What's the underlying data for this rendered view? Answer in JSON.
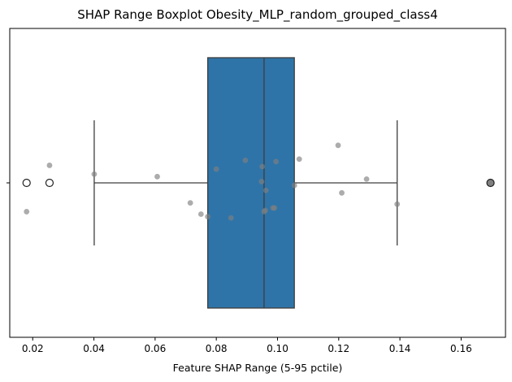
{
  "chart_data": {
    "type": "boxplot",
    "title": "SHAP Range Boxplot Obesity_MLP_random_grouped_class4",
    "xlabel": "Feature SHAP Range (5-95 pctile)",
    "ylabel": "",
    "xlim": [
      0.0125,
      0.1745
    ],
    "xticks": [
      0.02,
      0.04,
      0.06,
      0.08,
      0.1,
      0.12,
      0.14,
      0.16
    ],
    "xtick_labels": [
      "0.02",
      "0.04",
      "0.06",
      "0.08",
      "0.10",
      "0.12",
      "0.14",
      "0.16"
    ],
    "grid": false,
    "box": {
      "q1": 0.0772,
      "median": 0.0956,
      "q3": 0.1055,
      "whisker_low": 0.0401,
      "whisker_high": 0.1391,
      "color": "#2e74a8",
      "edge_color": "#3d3d3d"
    },
    "outliers": [
      {
        "x": 0.018,
        "fill": "none"
      },
      {
        "x": 0.0255,
        "fill": "none"
      },
      {
        "x": 0.1696,
        "fill": "#808080"
      }
    ],
    "points_color": "#808080",
    "points": [
      {
        "x": 0.018,
        "jitter": -0.23
      },
      {
        "x": 0.0255,
        "jitter": 0.14
      },
      {
        "x": 0.0401,
        "jitter": 0.07
      },
      {
        "x": 0.0607,
        "jitter": 0.05
      },
      {
        "x": 0.0715,
        "jitter": -0.16
      },
      {
        "x": 0.075,
        "jitter": -0.25
      },
      {
        "x": 0.0772,
        "jitter": -0.27
      },
      {
        "x": 0.08,
        "jitter": 0.11
      },
      {
        "x": 0.0848,
        "jitter": -0.28
      },
      {
        "x": 0.0895,
        "jitter": 0.18
      },
      {
        "x": 0.0948,
        "jitter": 0.01
      },
      {
        "x": 0.095,
        "jitter": 0.13
      },
      {
        "x": 0.0956,
        "jitter": -0.23
      },
      {
        "x": 0.096,
        "jitter": -0.22
      },
      {
        "x": 0.0962,
        "jitter": -0.06
      },
      {
        "x": 0.0985,
        "jitter": -0.2
      },
      {
        "x": 0.099,
        "jitter": -0.2
      },
      {
        "x": 0.0995,
        "jitter": 0.17
      },
      {
        "x": 0.1055,
        "jitter": -0.02
      },
      {
        "x": 0.1071,
        "jitter": 0.19
      },
      {
        "x": 0.1198,
        "jitter": 0.3
      },
      {
        "x": 0.121,
        "jitter": -0.08
      },
      {
        "x": 0.1291,
        "jitter": 0.03
      },
      {
        "x": 0.1391,
        "jitter": -0.17
      }
    ]
  }
}
